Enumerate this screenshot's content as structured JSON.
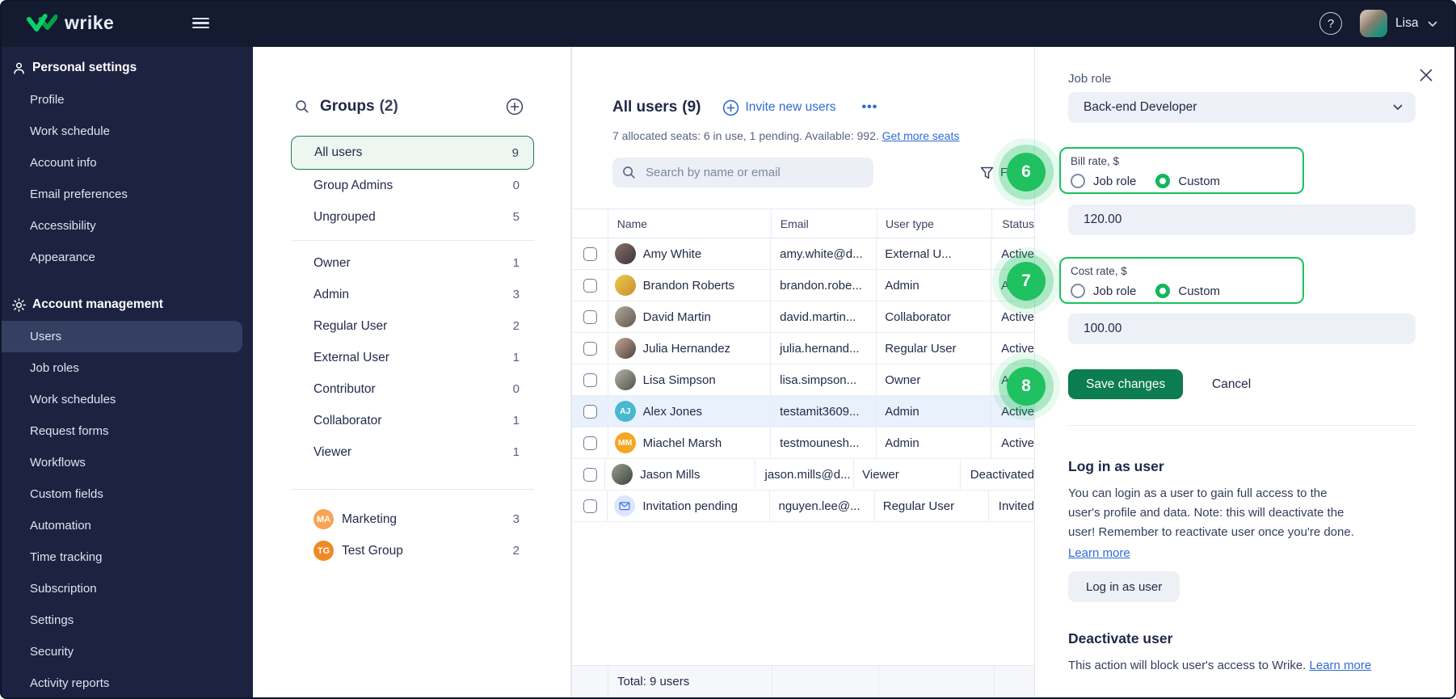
{
  "topbar": {
    "brand": "wrike",
    "help_label": "?",
    "user_name": "Lisa"
  },
  "sidebar": {
    "sections": [
      {
        "label": "Personal settings",
        "icon": "person-icon",
        "items": [
          {
            "label": "Profile"
          },
          {
            "label": "Work schedule"
          },
          {
            "label": "Account info"
          },
          {
            "label": "Email preferences"
          },
          {
            "label": "Accessibility"
          },
          {
            "label": "Appearance"
          }
        ]
      },
      {
        "label": "Account management",
        "icon": "gear-icon",
        "items": [
          {
            "label": "Users",
            "active": true
          },
          {
            "label": "Job roles"
          },
          {
            "label": "Work schedules"
          },
          {
            "label": "Request forms"
          },
          {
            "label": "Workflows"
          },
          {
            "label": "Custom fields"
          },
          {
            "label": "Automation"
          },
          {
            "label": "Time tracking"
          },
          {
            "label": "Subscription"
          },
          {
            "label": "Settings"
          },
          {
            "label": "Security"
          },
          {
            "label": "Activity reports"
          }
        ]
      }
    ]
  },
  "groups": {
    "title": "Groups",
    "count": "(2)",
    "items": [
      {
        "label": "All users",
        "count": "9",
        "selected": true
      },
      {
        "label": "Group Admins",
        "count": "0"
      },
      {
        "label": "Ungrouped",
        "count": "5"
      },
      {
        "divider": true
      },
      {
        "label": "Owner",
        "count": "1"
      },
      {
        "label": "Admin",
        "count": "3"
      },
      {
        "label": "Regular User",
        "count": "2"
      },
      {
        "label": "External User",
        "count": "1"
      },
      {
        "label": "Contributor",
        "count": "0"
      },
      {
        "label": "Collaborator",
        "count": "1"
      },
      {
        "label": "Viewer",
        "count": "1"
      },
      {
        "divider": true
      },
      {
        "label": "Marketing",
        "count": "3",
        "avatar": "MA",
        "color": "#F7A456"
      },
      {
        "label": "Test Group",
        "count": "2",
        "avatar": "TG",
        "color": "#F08A24"
      }
    ]
  },
  "users": {
    "title": "All users",
    "count": "(9)",
    "invite_label": "Invite new users",
    "more_label": "•••",
    "seats_text": "7 allocated seats: 6 in use, 1 pending. Available: 992.",
    "seats_link": "Get more seats",
    "search_placeholder": "Search by name or email",
    "filters_label": "Filters",
    "columns": [
      "Name",
      "Email",
      "User type",
      "Status"
    ],
    "rows": [
      {
        "name": "Amy White",
        "email": "amy.white@d...",
        "type": "External U...",
        "status": "Active",
        "avatar": {
          "kind": "photo",
          "c1": "#8A6F63",
          "c2": "#3A3440"
        }
      },
      {
        "name": "Brandon Roberts",
        "email": "brandon.robe...",
        "type": "Admin",
        "status": "Active",
        "avatar": {
          "kind": "photo",
          "c1": "#ECC94B",
          "c2": "#C98F2F"
        }
      },
      {
        "name": "David Martin",
        "email": "david.martin...",
        "type": "Collaborator",
        "status": "Active",
        "avatar": {
          "kind": "photo",
          "c1": "#B3A79B",
          "c2": "#5F584F"
        }
      },
      {
        "name": "Julia Hernandez",
        "email": "julia.hernand...",
        "type": "Regular User",
        "status": "Active",
        "avatar": {
          "kind": "photo",
          "c1": "#C4A896",
          "c2": "#51413C"
        }
      },
      {
        "name": "Lisa Simpson",
        "email": "lisa.simpson...",
        "type": "Owner",
        "status": "Active",
        "avatar": {
          "kind": "photo",
          "c1": "#B8B3A8",
          "c2": "#4F5248"
        }
      },
      {
        "name": "Alex Jones",
        "email": "testamit3609...",
        "type": "Admin",
        "status": "Active",
        "selected": true,
        "avatar": {
          "kind": "initials",
          "text": "AJ",
          "bg": "#49B9CF"
        }
      },
      {
        "name": "Miachel Marsh",
        "email": "testmounesh...",
        "type": "Admin",
        "status": "Active",
        "avatar": {
          "kind": "initials",
          "text": "MM",
          "bg": "#F5A623"
        }
      },
      {
        "name": "Jason Mills",
        "email": "jason.mills@d...",
        "type": "Viewer",
        "status": "Deactivated",
        "avatar": {
          "kind": "photo",
          "c1": "#9AA08F",
          "c2": "#3C4238"
        }
      },
      {
        "name": "Invitation pending",
        "email": "nguyen.lee@...",
        "type": "Regular User",
        "status": "Invited",
        "avatar": {
          "kind": "icon",
          "icon": "envelope-icon",
          "bg": "#DCE7FD",
          "fg": "#4B76D8"
        }
      }
    ],
    "footer_total": "Total: 9 users"
  },
  "panel": {
    "job_role_label": "Job role",
    "job_role_value": "Back-end Developer",
    "bill_rate": {
      "label": "Bill rate, $",
      "options": [
        "Job role",
        "Custom"
      ],
      "selected": "Custom",
      "value": "120.00"
    },
    "cost_rate": {
      "label": "Cost rate, $",
      "options": [
        "Job role",
        "Custom"
      ],
      "selected": "Custom",
      "value": "100.00"
    },
    "save_label": "Save changes",
    "cancel_label": "Cancel",
    "login": {
      "title": "Log in as user",
      "body_lines": [
        "You can login as a user to gain full access to the",
        "user's profile and data. Note: this will deactivate the",
        "user! Remember to reactivate user once you're done."
      ],
      "link": "Learn more",
      "button": "Log in as user"
    },
    "deactivate": {
      "title": "Deactivate user",
      "body": "This action will block user's access to Wrike.",
      "link": "Learn more"
    }
  },
  "annotations": [
    "6",
    "7",
    "8"
  ],
  "colors": {
    "accent_green": "#1FC161",
    "button_green": "#0C7C51",
    "link_blue": "#2E6BD3",
    "topbar_bg": "#141A2F",
    "sidebar_bg": "#1C2240",
    "selected_row_blue": "#E9F2FC",
    "selected_group_green": "#EDF6F0",
    "group_border_green": "#1E7C4E"
  }
}
